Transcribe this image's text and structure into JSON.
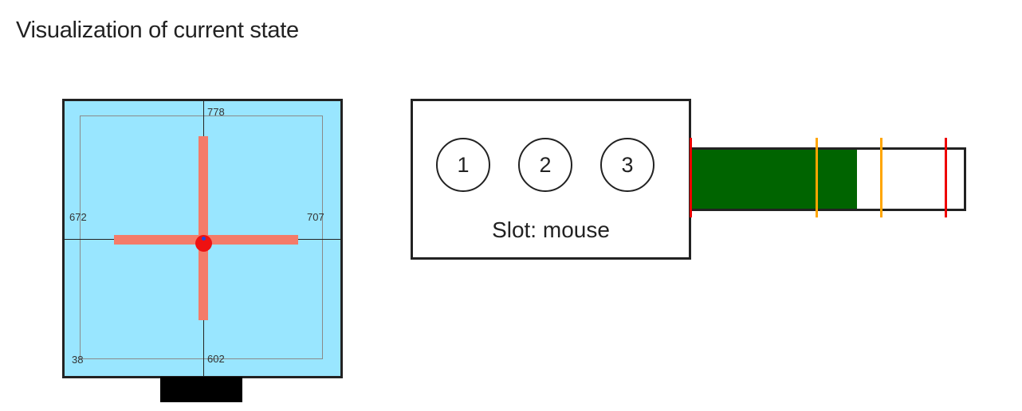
{
  "page": {
    "title": "Visualization of current state"
  },
  "position_panel": {
    "bounds": {
      "top": "778",
      "left": "672",
      "right": "707",
      "bottom": "602",
      "corner": "38"
    },
    "colors": {
      "background": "#99e6ff",
      "crosshair": "#f47b69",
      "cursor": "#ee1111",
      "cursor_center": "#2244dd"
    }
  },
  "slot_panel": {
    "slots": [
      "1",
      "2",
      "3"
    ],
    "caption_prefix": "Slot:",
    "caption_value": "mouse"
  },
  "gauge": {
    "fill_fraction": 0.608,
    "fill_color": "#006400",
    "marker_colors": [
      "#ee0000",
      "#ffa500",
      "#ffa500",
      "#ee0000"
    ]
  }
}
